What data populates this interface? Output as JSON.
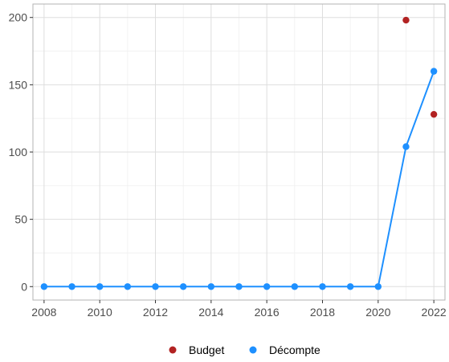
{
  "chart_data": {
    "type": "line",
    "title": "",
    "xlabel": "",
    "ylabel": "",
    "xlim": [
      2007.6,
      2022.4
    ],
    "ylim": [
      -10,
      210
    ],
    "x_ticks": [
      2008,
      2010,
      2012,
      2014,
      2016,
      2018,
      2020,
      2022
    ],
    "x_tick_labels": [
      "2008",
      "2010",
      "2012",
      "2014",
      "2016",
      "2018",
      "2020",
      "2022"
    ],
    "y_ticks": [
      0,
      50,
      100,
      150,
      200
    ],
    "y_tick_labels": [
      "0",
      "50",
      "100",
      "150",
      "200"
    ],
    "grid": true,
    "legend_position": "bottom",
    "series": [
      {
        "name": "Budget",
        "style": "points",
        "color": "#b22222",
        "x": [
          2021,
          2022
        ],
        "y": [
          198,
          128
        ]
      },
      {
        "name": "Décompte",
        "style": "line+points",
        "color": "#1e90ff",
        "x": [
          2008,
          2009,
          2010,
          2011,
          2012,
          2013,
          2014,
          2015,
          2016,
          2017,
          2018,
          2019,
          2020,
          2021,
          2022
        ],
        "y": [
          0,
          0,
          0,
          0,
          0,
          0,
          0,
          0,
          0,
          0,
          0,
          0,
          0,
          104,
          160
        ]
      }
    ]
  }
}
